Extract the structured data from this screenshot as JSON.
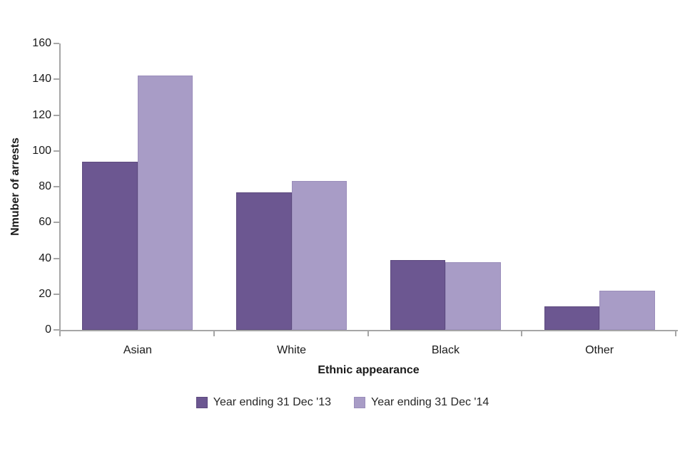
{
  "chart_data": {
    "type": "bar",
    "title": "",
    "xlabel": "Ethnic appearance",
    "ylabel": "Nmuber of arrests",
    "categories": [
      "Asian",
      "White",
      "Black",
      "Other"
    ],
    "series": [
      {
        "name": "Year ending 31 Dec '13",
        "color": "#6C5791",
        "border_color": "#5D4A7E",
        "values": [
          94,
          77,
          39,
          13
        ]
      },
      {
        "name": "Year ending 31 Dec '14",
        "color": "#A89CC6",
        "border_color": "#9A8DBB",
        "values": [
          142,
          83,
          38,
          22
        ]
      }
    ],
    "ylim": [
      0,
      160
    ],
    "ytick_step": 20,
    "yticks": [
      "0",
      "20",
      "40",
      "60",
      "80",
      "100",
      "120",
      "140",
      "160"
    ],
    "grid": "off",
    "legend_position": "bottom",
    "axis_color": "#A6A6A6",
    "text_color": "#1A1A1A",
    "background": "#FFFFFF"
  }
}
